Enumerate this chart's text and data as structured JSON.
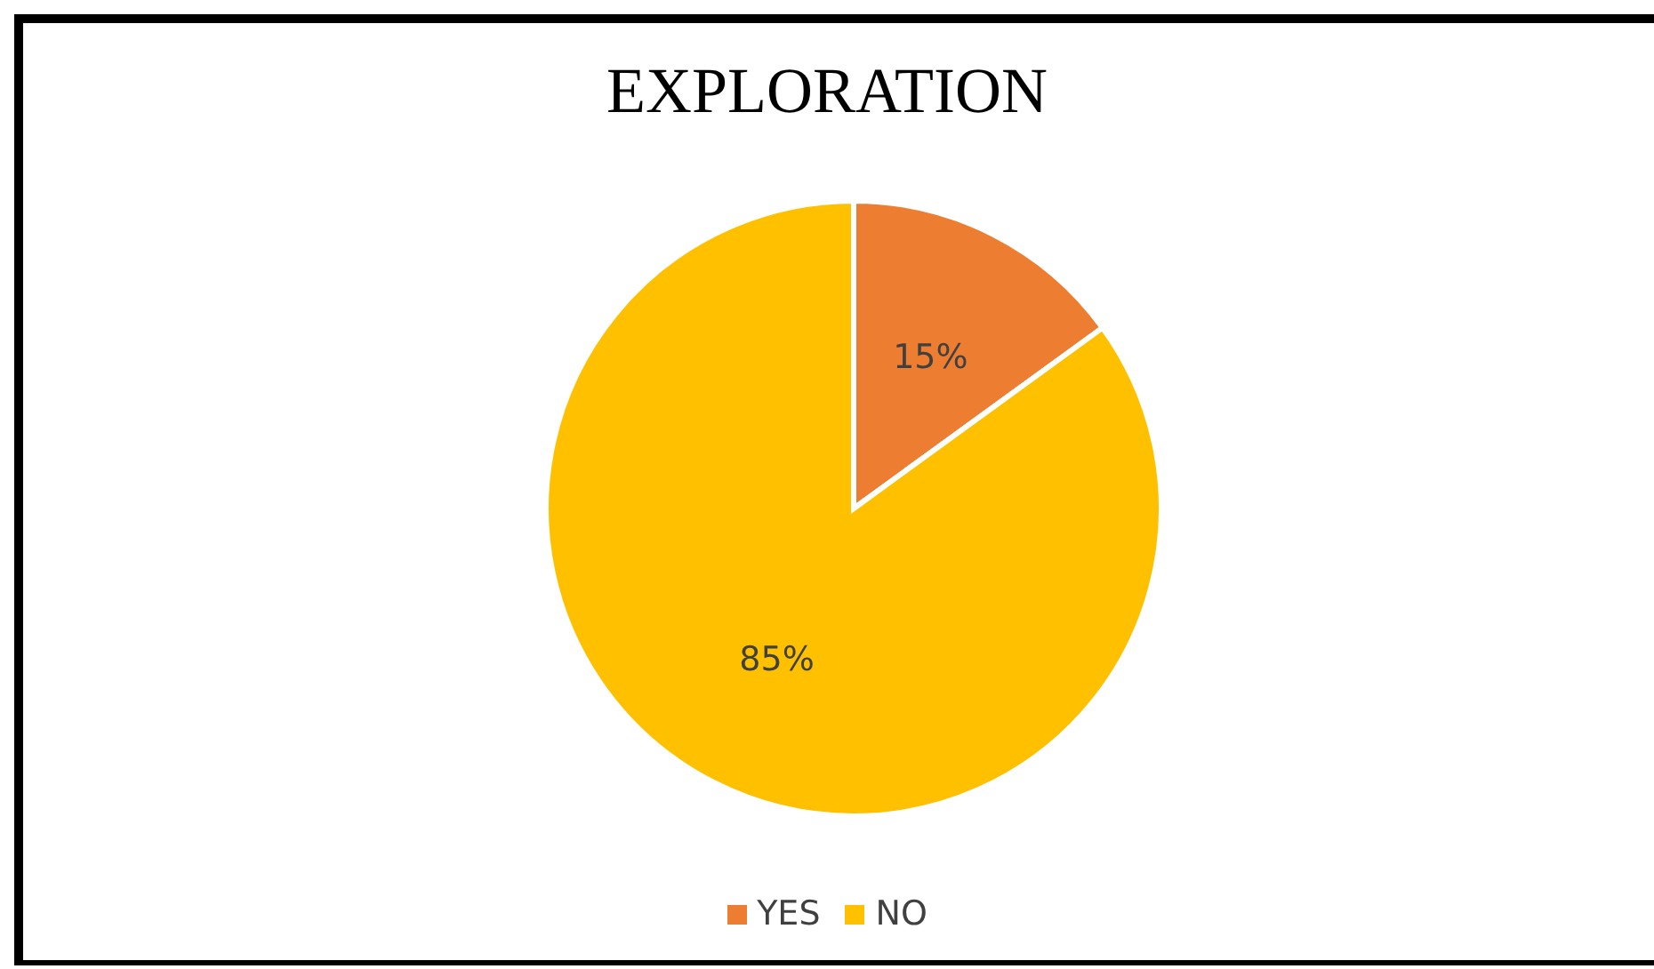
{
  "chart_data": {
    "type": "pie",
    "title": "EXPLORATION",
    "categories": [
      "YES",
      "NO"
    ],
    "values": [
      15,
      85
    ],
    "colors": [
      "#ed7d31",
      "#ffc000"
    ],
    "value_labels": [
      "15%",
      "85%"
    ],
    "legend": "bottom"
  }
}
